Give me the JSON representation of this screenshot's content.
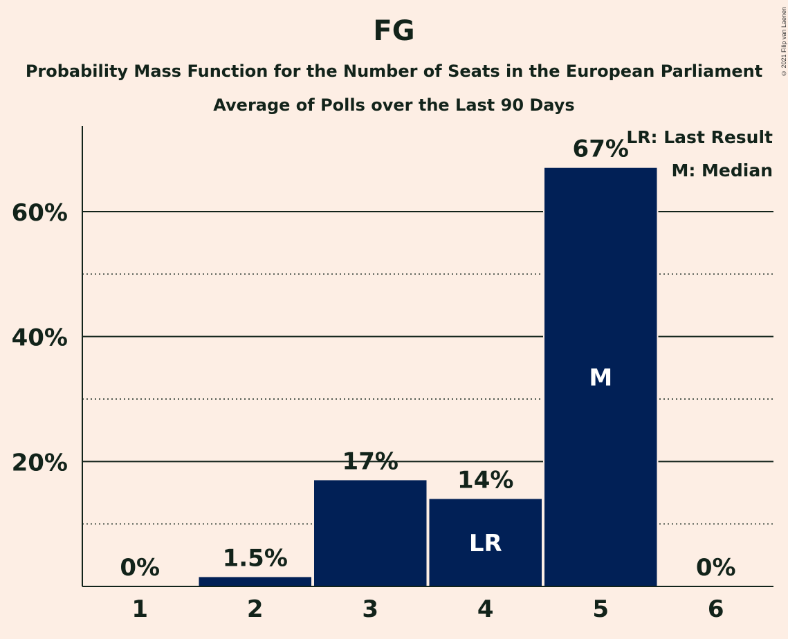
{
  "title": "FG",
  "subtitle": "Probability Mass Function for the Number of Seats in the European Parliament",
  "subtitle2": "Average of Polls over the Last 90 Days",
  "copyright": "© 2021 Filip van Laenen",
  "legend": {
    "last_result": "LR: Last Result",
    "median": "M: Median"
  },
  "colors": {
    "background": "#fdeee4",
    "bar": "#012056",
    "text": "#12231a"
  },
  "chart_data": {
    "type": "bar",
    "categories": [
      "1",
      "2",
      "3",
      "4",
      "5",
      "6"
    ],
    "values": [
      0,
      1.5,
      17,
      14,
      67,
      0
    ],
    "value_labels": [
      "0%",
      "1.5%",
      "17%",
      "14%",
      "67%",
      "0%"
    ],
    "bar_markers": [
      "",
      "",
      "",
      "LR",
      "M",
      ""
    ],
    "ylim": [
      0,
      73.5
    ],
    "yticks": [
      20,
      40,
      60
    ],
    "ytick_labels": [
      "20%",
      "40%",
      "60%"
    ],
    "minor_gridlines": [
      10,
      30,
      50
    ],
    "grid": true
  }
}
